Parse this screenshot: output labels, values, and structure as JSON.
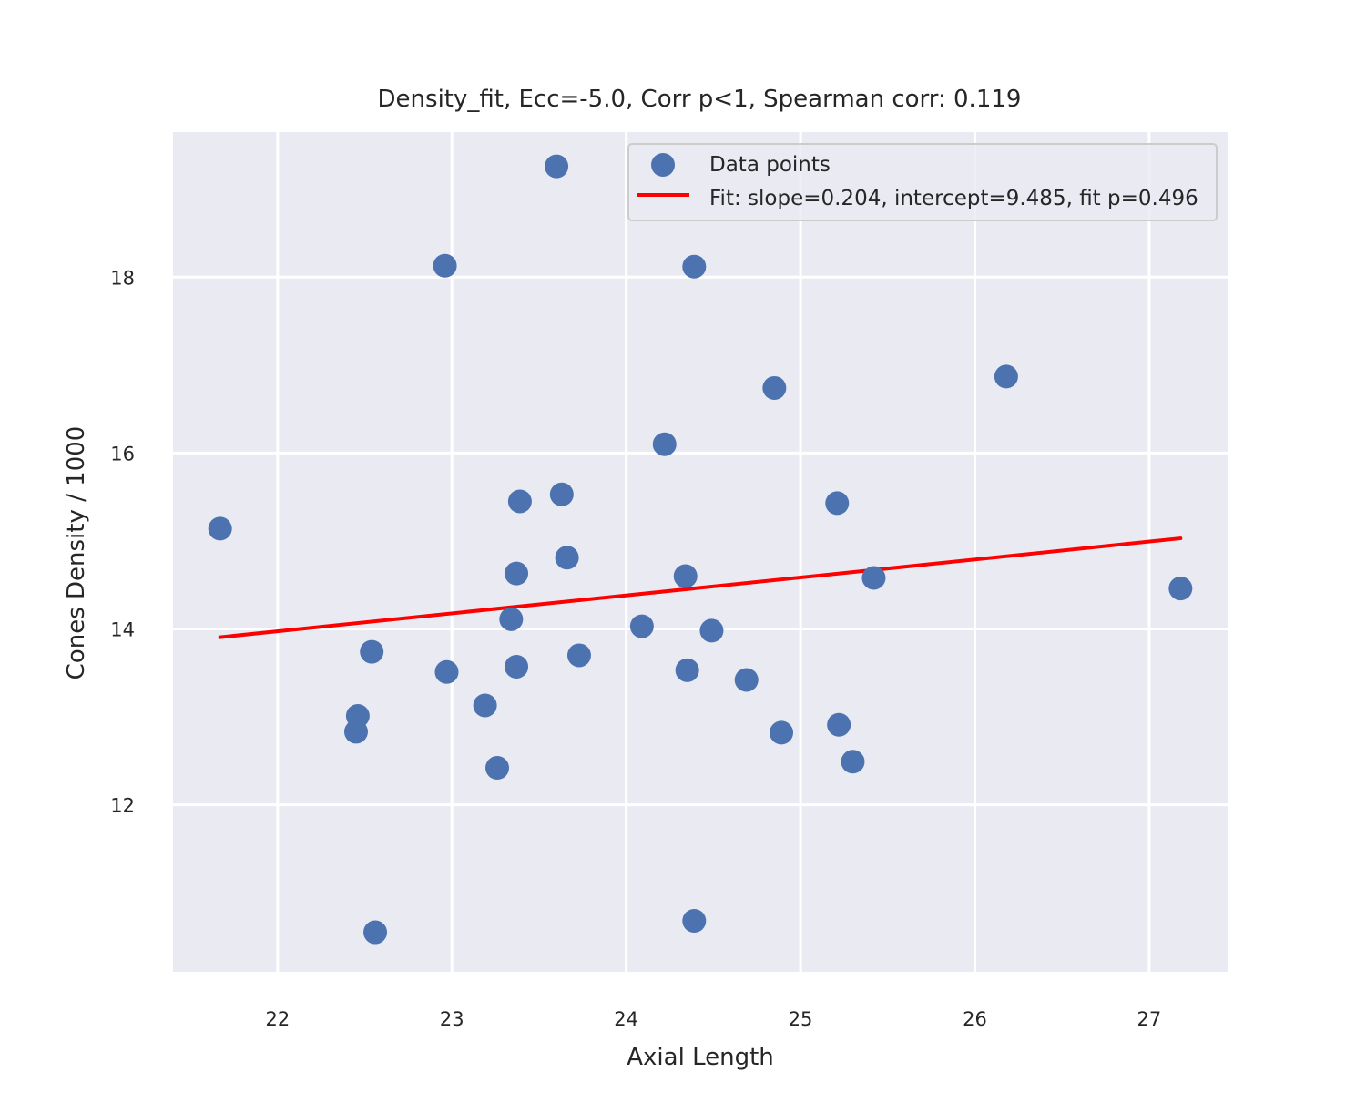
{
  "chart_data": {
    "type": "scatter",
    "title": "Density_fit, Ecc=-5.0, Corr p<1, Spearman corr: 0.119",
    "xlabel": "Axial Length",
    "ylabel": "Cones Density / 1000",
    "xlim": [
      21.4,
      27.45
    ],
    "ylim": [
      10.1,
      19.65
    ],
    "xticks": [
      22,
      23,
      24,
      25,
      26,
      27
    ],
    "yticks": [
      12,
      14,
      16,
      18
    ],
    "xtick_labels": [
      "22",
      "23",
      "24",
      "25",
      "26",
      "27"
    ],
    "ytick_labels": [
      "12",
      "14",
      "16",
      "18"
    ],
    "grid": true,
    "legend_position": "top-right",
    "series": [
      {
        "name": "Data points",
        "kind": "scatter",
        "color": "#4c72b0",
        "points": [
          {
            "x": 21.67,
            "y": 15.14
          },
          {
            "x": 22.45,
            "y": 12.83
          },
          {
            "x": 22.46,
            "y": 13.01
          },
          {
            "x": 22.54,
            "y": 13.74
          },
          {
            "x": 22.56,
            "y": 10.55
          },
          {
            "x": 22.96,
            "y": 18.13
          },
          {
            "x": 22.97,
            "y": 13.51
          },
          {
            "x": 23.19,
            "y": 13.13
          },
          {
            "x": 23.26,
            "y": 12.42
          },
          {
            "x": 23.34,
            "y": 14.11
          },
          {
            "x": 23.37,
            "y": 14.63
          },
          {
            "x": 23.37,
            "y": 13.57
          },
          {
            "x": 23.39,
            "y": 15.45
          },
          {
            "x": 23.6,
            "y": 19.26
          },
          {
            "x": 23.63,
            "y": 15.53
          },
          {
            "x": 23.66,
            "y": 14.81
          },
          {
            "x": 23.73,
            "y": 13.7
          },
          {
            "x": 24.09,
            "y": 14.03
          },
          {
            "x": 24.22,
            "y": 16.1
          },
          {
            "x": 24.34,
            "y": 14.6
          },
          {
            "x": 24.35,
            "y": 13.53
          },
          {
            "x": 24.39,
            "y": 18.12
          },
          {
            "x": 24.39,
            "y": 10.68
          },
          {
            "x": 24.49,
            "y": 13.98
          },
          {
            "x": 24.69,
            "y": 13.42
          },
          {
            "x": 24.85,
            "y": 16.74
          },
          {
            "x": 24.89,
            "y": 12.82
          },
          {
            "x": 25.21,
            "y": 15.43
          },
          {
            "x": 25.22,
            "y": 12.91
          },
          {
            "x": 25.3,
            "y": 12.49
          },
          {
            "x": 25.42,
            "y": 14.58
          },
          {
            "x": 26.18,
            "y": 16.87
          },
          {
            "x": 27.18,
            "y": 14.46
          }
        ]
      },
      {
        "name": "Fit: slope=0.204, intercept=9.485, fit p=0.496",
        "kind": "line",
        "color": "#ff0000",
        "slope": 0.204,
        "intercept": 9.485,
        "x_range": [
          21.67,
          27.18
        ]
      }
    ]
  }
}
